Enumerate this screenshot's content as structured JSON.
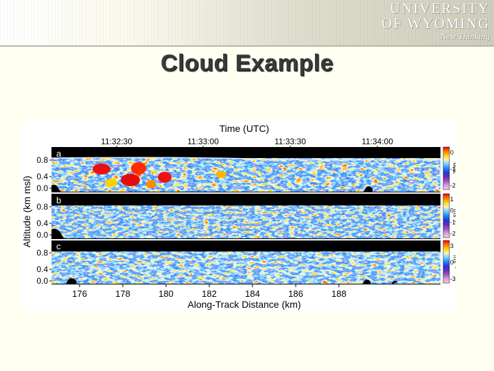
{
  "header": {
    "logo_line1": "UNIVERSITY",
    "logo_line2": "OF WYOMING",
    "tagline": "New Thinking"
  },
  "slide": {
    "title": "Cloud Example"
  },
  "figure": {
    "top_axis_label": "Time (UTC)",
    "top_ticks": [
      "11:32:30",
      "11:33:00",
      "11:33:30",
      "11:34:00"
    ],
    "bottom_axis_label": "Along-Track Distance (km)",
    "bottom_ticks": [
      "176",
      "178",
      "180",
      "182",
      "184",
      "186",
      "188"
    ],
    "y_axis_label": "Altitude (km msl)",
    "y_ticks": [
      "0.8",
      "0.4",
      "0.0"
    ],
    "panels": [
      {
        "letter": "a",
        "colorbar_unit": "dBZ",
        "colorbar_ticks": [
          "0",
          "-10",
          "-20"
        ]
      },
      {
        "letter": "b",
        "colorbar_unit": "ms⁻¹",
        "colorbar_ticks": [
          "1",
          "0",
          "-1",
          "-2"
        ]
      },
      {
        "letter": "c",
        "colorbar_unit": "ms⁻¹",
        "colorbar_ticks": [
          "3",
          "0",
          "-3"
        ]
      }
    ],
    "colors": {
      "colorbar": [
        "#ef0000",
        "#ff7a00",
        "#ffd400",
        "#f4f0c8",
        "#6fd0ff",
        "#2a82ff",
        "#1e3cd8",
        "#6a2ab8",
        "#9b55c8",
        "#d9a0d8",
        "#f4c8e4"
      ]
    }
  }
}
